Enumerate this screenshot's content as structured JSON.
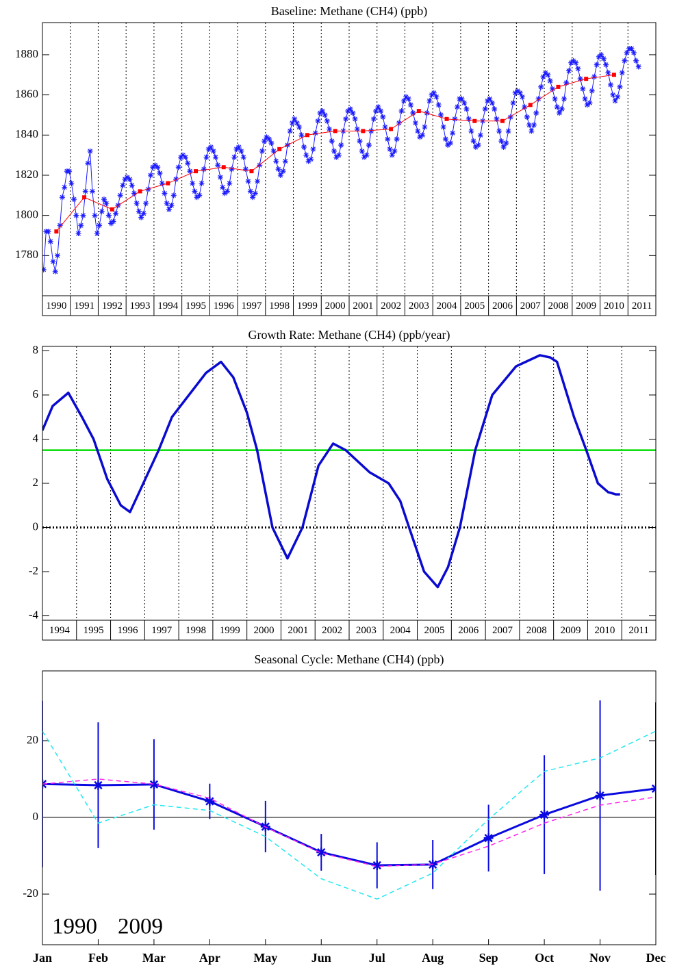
{
  "chart_data": [
    {
      "type": "line",
      "title": "Baseline: Methane (CH4) (ppb)",
      "xlim": [
        1990,
        2012
      ],
      "xticks": [
        1990,
        1991,
        1992,
        1993,
        1994,
        1995,
        1996,
        1997,
        1998,
        1999,
        2000,
        2001,
        2002,
        2003,
        2004,
        2005,
        2006,
        2007,
        2008,
        2009,
        2010,
        2011
      ],
      "ylim": [
        1760,
        1896
      ],
      "yticks": [
        1780,
        1800,
        1820,
        1840,
        1860,
        1880
      ],
      "grid": true,
      "series": [
        {
          "color": "#1a1aff",
          "marker": "star",
          "width": 1,
          "x": [
            1990.04,
            1990.13,
            1990.21,
            1990.29,
            1990.38,
            1990.46,
            1990.54,
            1990.63,
            1990.71,
            1990.79,
            1990.88,
            1990.96,
            1991.04,
            1991.13,
            1991.21,
            1991.29,
            1991.38,
            1991.46,
            1991.54,
            1991.63,
            1991.71,
            1991.79,
            1991.88,
            1991.96,
            1992.04,
            1992.13,
            1992.21,
            1992.29,
            1992.38,
            1992.46,
            1992.54,
            1992.63,
            1992.71,
            1992.79,
            1992.88,
            1992.96,
            1993.04,
            1993.13,
            1993.21,
            1993.29,
            1993.38,
            1993.46,
            1993.54,
            1993.63,
            1993.71,
            1993.79,
            1993.88,
            1993.96,
            1994.04,
            1994.13,
            1994.21,
            1994.29,
            1994.38,
            1994.46,
            1994.54,
            1994.63,
            1994.71,
            1994.79,
            1994.88,
            1994.96,
            1995.04,
            1995.13,
            1995.21,
            1995.29,
            1995.38,
            1995.46,
            1995.54,
            1995.63,
            1995.71,
            1995.79,
            1995.88,
            1995.96,
            1996.04,
            1996.13,
            1996.21,
            1996.29,
            1996.38,
            1996.46,
            1996.54,
            1996.63,
            1996.71,
            1996.79,
            1996.88,
            1996.96,
            1997.04,
            1997.13,
            1997.21,
            1997.29,
            1997.38,
            1997.46,
            1997.54,
            1997.63,
            1997.71,
            1997.79,
            1997.88,
            1997.96,
            1998.04,
            1998.13,
            1998.21,
            1998.29,
            1998.38,
            1998.46,
            1998.54,
            1998.63,
            1998.71,
            1998.79,
            1998.88,
            1998.96,
            1999.04,
            1999.13,
            1999.21,
            1999.29,
            1999.38,
            1999.46,
            1999.54,
            1999.63,
            1999.71,
            1999.79,
            1999.88,
            1999.96,
            2000.04,
            2000.13,
            2000.21,
            2000.29,
            2000.38,
            2000.46,
            2000.54,
            2000.63,
            2000.71,
            2000.79,
            2000.88,
            2000.96,
            2001.04,
            2001.13,
            2001.21,
            2001.29,
            2001.38,
            2001.46,
            2001.54,
            2001.63,
            2001.71,
            2001.79,
            2001.88,
            2001.96,
            2002.04,
            2002.13,
            2002.21,
            2002.29,
            2002.38,
            2002.46,
            2002.54,
            2002.63,
            2002.71,
            2002.79,
            2002.88,
            2002.96,
            2003.04,
            2003.13,
            2003.21,
            2003.29,
            2003.38,
            2003.46,
            2003.54,
            2003.63,
            2003.71,
            2003.79,
            2003.88,
            2003.96,
            2004.04,
            2004.13,
            2004.21,
            2004.29,
            2004.38,
            2004.46,
            2004.54,
            2004.63,
            2004.71,
            2004.79,
            2004.88,
            2004.96,
            2005.04,
            2005.13,
            2005.21,
            2005.29,
            2005.38,
            2005.46,
            2005.54,
            2005.63,
            2005.71,
            2005.79,
            2005.88,
            2005.96,
            2006.04,
            2006.13,
            2006.21,
            2006.29,
            2006.38,
            2006.46,
            2006.54,
            2006.63,
            2006.71,
            2006.79,
            2006.88,
            2006.96,
            2007.04,
            2007.13,
            2007.21,
            2007.29,
            2007.38,
            2007.46,
            2007.54,
            2007.63,
            2007.71,
            2007.79,
            2007.88,
            2007.96,
            2008.04,
            2008.13,
            2008.21,
            2008.29,
            2008.38,
            2008.46,
            2008.54,
            2008.63,
            2008.71,
            2008.79,
            2008.88,
            2008.96,
            2009.04,
            2009.13,
            2009.21,
            2009.29,
            2009.38,
            2009.46,
            2009.54,
            2009.63,
            2009.71,
            2009.79,
            2009.88,
            2009.96,
            2010.04,
            2010.13,
            2010.21,
            2010.29,
            2010.38,
            2010.46,
            2010.54,
            2010.63,
            2010.71,
            2010.79,
            2010.88,
            2010.96,
            2011.04,
            2011.13,
            2011.21,
            2011.29,
            2011.38
          ],
          "values": [
            1773,
            1792,
            1792,
            1787,
            1777,
            1772,
            1780,
            1795,
            1809,
            1814,
            1822,
            1822,
            1816,
            1808,
            1800,
            1791,
            1795,
            1800,
            1812,
            1826,
            1832,
            1812,
            1800,
            1791,
            1795,
            1802,
            1808,
            1806,
            1800,
            1796,
            1797,
            1801,
            1805,
            1810,
            1815,
            1818,
            1819,
            1818,
            1815,
            1811,
            1806,
            1802,
            1799,
            1801,
            1806,
            1813,
            1820,
            1824,
            1825,
            1824,
            1821,
            1816,
            1811,
            1806,
            1803,
            1805,
            1810,
            1818,
            1824,
            1829,
            1830,
            1829,
            1826,
            1822,
            1816,
            1812,
            1809,
            1810,
            1816,
            1823,
            1829,
            1833,
            1834,
            1832,
            1829,
            1825,
            1819,
            1814,
            1811,
            1812,
            1816,
            1823,
            1829,
            1833,
            1834,
            1832,
            1829,
            1823,
            1817,
            1812,
            1809,
            1811,
            1817,
            1825,
            1832,
            1837,
            1839,
            1838,
            1836,
            1832,
            1827,
            1823,
            1820,
            1822,
            1827,
            1835,
            1842,
            1846,
            1848,
            1846,
            1844,
            1840,
            1834,
            1830,
            1827,
            1828,
            1833,
            1841,
            1847,
            1851,
            1852,
            1850,
            1847,
            1843,
            1837,
            1832,
            1829,
            1830,
            1835,
            1842,
            1848,
            1852,
            1853,
            1851,
            1848,
            1843,
            1837,
            1832,
            1829,
            1830,
            1835,
            1842,
            1848,
            1852,
            1854,
            1852,
            1849,
            1844,
            1838,
            1833,
            1830,
            1832,
            1838,
            1846,
            1852,
            1857,
            1859,
            1858,
            1855,
            1851,
            1846,
            1842,
            1839,
            1840,
            1844,
            1851,
            1857,
            1860,
            1861,
            1859,
            1855,
            1850,
            1844,
            1838,
            1835,
            1836,
            1841,
            1848,
            1854,
            1858,
            1858,
            1856,
            1853,
            1848,
            1842,
            1837,
            1834,
            1835,
            1840,
            1847,
            1853,
            1857,
            1858,
            1856,
            1853,
            1848,
            1842,
            1837,
            1834,
            1836,
            1842,
            1849,
            1856,
            1861,
            1862,
            1861,
            1859,
            1854,
            1849,
            1845,
            1842,
            1845,
            1851,
            1858,
            1864,
            1869,
            1871,
            1870,
            1867,
            1863,
            1858,
            1854,
            1851,
            1853,
            1858,
            1866,
            1872,
            1876,
            1877,
            1876,
            1873,
            1868,
            1863,
            1858,
            1855,
            1856,
            1862,
            1869,
            1875,
            1879,
            1880,
            1878,
            1875,
            1871,
            1865,
            1860,
            1857,
            1859,
            1864,
            1871,
            1877,
            1881,
            1883,
            1883,
            1881,
            1877,
            1874
          ]
        },
        {
          "color": "#ff0000",
          "marker": "square",
          "width": 1,
          "x": [
            1990.5,
            1991.5,
            1992.5,
            1993.5,
            1994.5,
            1995.5,
            1996.5,
            1997.5,
            1998.5,
            1999.5,
            2000.5,
            2001.5,
            2002.5,
            2003.5,
            2004.5,
            2005.5,
            2006.5,
            2007.5,
            2008.5,
            2009.5,
            2010.5
          ],
          "values": [
            1792,
            1809,
            1803,
            1812,
            1816,
            1822,
            1824,
            1822,
            1833,
            1840,
            1842,
            1842,
            1843,
            1852,
            1848,
            1847,
            1847,
            1855,
            1864,
            1868,
            1870
          ]
        }
      ]
    },
    {
      "type": "line",
      "title": "Growth Rate: Methane (CH4) (ppb/year)",
      "xlim": [
        1994,
        2012
      ],
      "xticks": [
        1994,
        1995,
        1996,
        1997,
        1998,
        1999,
        2000,
        2001,
        2002,
        2003,
        2004,
        2005,
        2006,
        2007,
        2008,
        2009,
        2010,
        2011
      ],
      "ylim": [
        -4.2,
        8.2
      ],
      "yticks": [
        -4,
        -2,
        0,
        2,
        4,
        6,
        8
      ],
      "grid": true,
      "hlines": [
        {
          "value": 3.5,
          "color": "#00dd00",
          "width": 2.5
        },
        {
          "value": 0,
          "color": "#000000",
          "width": 3,
          "dash": "dotted"
        }
      ],
      "series": [
        {
          "color": "#0a0ad0",
          "width": 3.5,
          "x": [
            1994.0,
            1994.3,
            1994.76,
            1995.16,
            1995.5,
            1995.9,
            1996.3,
            1996.57,
            1996.9,
            1997.41,
            1997.8,
            1998.3,
            1998.8,
            1999.24,
            1999.6,
            2000.0,
            2000.3,
            2000.75,
            2001.19,
            2001.63,
            2002.1,
            2002.53,
            2002.9,
            2003.6,
            2004.16,
            2004.5,
            2004.76,
            2005.2,
            2005.6,
            2005.9,
            2006.25,
            2006.7,
            2007.2,
            2007.9,
            2008.6,
            2008.9,
            2009.1,
            2009.6,
            2009.96,
            2010.3,
            2010.6,
            2010.83,
            2010.95
          ],
          "values": [
            4.4,
            5.5,
            6.1,
            5.0,
            4.0,
            2.2,
            1.0,
            0.7,
            1.8,
            3.5,
            5.0,
            6.0,
            7.0,
            7.5,
            6.8,
            5.2,
            3.5,
            0.0,
            -1.4,
            0.0,
            2.8,
            3.8,
            3.5,
            2.5,
            2.0,
            1.2,
            0.0,
            -2.0,
            -2.7,
            -1.8,
            0.0,
            3.5,
            6.0,
            7.3,
            7.8,
            7.7,
            7.5,
            5.0,
            3.5,
            2.0,
            1.6,
            1.5,
            1.5
          ]
        }
      ]
    },
    {
      "type": "line",
      "title": "Seasonal Cycle: Methane (CH4) (ppb)",
      "categories": [
        "Jan",
        "Feb",
        "Mar",
        "Apr",
        "May",
        "Jun",
        "Jul",
        "Aug",
        "Sep",
        "Oct",
        "Nov",
        "Dec"
      ],
      "ylim": [
        -33.2,
        38.2
      ],
      "yticks": [
        -20,
        0,
        20
      ],
      "hlines": [
        {
          "value": 0,
          "color": "#000000",
          "width": 1
        }
      ],
      "series": [
        {
          "color": "#0a0ae0",
          "width": 3,
          "marker": "star",
          "values": [
            8.7,
            8.4,
            8.6,
            4.2,
            -2.4,
            -9.1,
            -12.5,
            -12.3,
            -5.4,
            0.7,
            5.7,
            7.5
          ],
          "errors": [
            21.7,
            16.4,
            11.8,
            4.6,
            6.7,
            4.8,
            6.0,
            6.4,
            8.7,
            15.5,
            24.8,
            22.5
          ]
        },
        {
          "name": "1990",
          "color": "#22e8f0",
          "width": 1.5,
          "dash": "dashed",
          "values": [
            22.5,
            -1.5,
            3.3,
            1.8,
            -5.0,
            -16.0,
            -21.3,
            -14.5,
            -0.5,
            12.0,
            15.5,
            22.5
          ]
        },
        {
          "name": "2009",
          "color": "#ff22ee",
          "width": 1.5,
          "dash": "dashed",
          "values": [
            8.7,
            10.0,
            8.7,
            5.0,
            -2.5,
            -9.3,
            -12.8,
            -12.2,
            -7.5,
            -1.5,
            3.2,
            5.3
          ]
        }
      ]
    }
  ]
}
